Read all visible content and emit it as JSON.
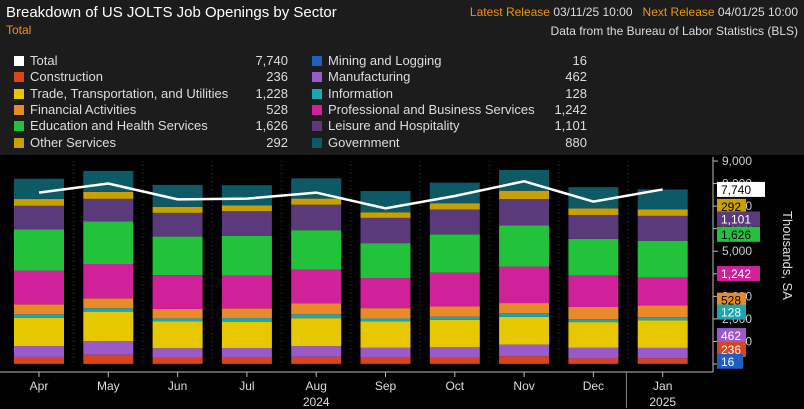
{
  "header": {
    "title": "Breakdown of US JOLTS Job Openings by Sector",
    "subtitle": "Total",
    "latest_release_label": "Latest Release",
    "latest_release_value": "03/11/25 10:00",
    "next_release_label": "Next Release",
    "next_release_value": "04/01/25 10:00",
    "source": "Data from the Bureau of Labor Statistics (BLS)"
  },
  "colors": {
    "Total": "#ffffff",
    "Mining and Logging": "#1f5fbf",
    "Construction": "#d9441c",
    "Manufacturing": "#9b59c9",
    "Trade, Transportation, and Utilities": "#e6c700",
    "Information": "#1aa6b2",
    "Financial Activities": "#e88a2a",
    "Professional and Business Services": "#d0219a",
    "Education and Health Services": "#22c23a",
    "Leisure and Hospitality": "#5a3a7a",
    "Other Services": "#c8a000",
    "Government": "#0d5a66"
  },
  "chart_data": {
    "type": "bar",
    "stacked": true,
    "categories": [
      "Apr",
      "May",
      "Jun",
      "Jul",
      "Aug",
      "Sep",
      "Oct",
      "Nov",
      "Dec",
      "Jan"
    ],
    "year_labels": [
      {
        "text": "2024",
        "at": "Aug"
      },
      {
        "text": "2025",
        "at": "Jan"
      }
    ],
    "ylabel": "Thousands, SA",
    "ylim": [
      0,
      9000
    ],
    "yticks": [
      9000,
      8000,
      7000,
      6000,
      5000,
      4000,
      3000,
      2000,
      1000,
      0
    ],
    "series": [
      {
        "name": "Mining and Logging",
        "values": [
          24,
          22,
          20,
          22,
          23,
          18,
          20,
          22,
          18,
          16
        ]
      },
      {
        "name": "Construction",
        "values": [
          290,
          390,
          250,
          255,
          300,
          260,
          270,
          320,
          230,
          236
        ]
      },
      {
        "name": "Manufacturing",
        "values": [
          480,
          600,
          430,
          430,
          470,
          440,
          450,
          520,
          470,
          462
        ]
      },
      {
        "name": "Trade, Transportation, and Utilities",
        "values": [
          1250,
          1310,
          1200,
          1170,
          1240,
          1180,
          1220,
          1230,
          1140,
          1228
        ]
      },
      {
        "name": "Information",
        "values": [
          160,
          150,
          120,
          160,
          170,
          120,
          140,
          160,
          130,
          128
        ]
      },
      {
        "name": "Financial Activities",
        "values": [
          440,
          440,
          420,
          430,
          480,
          460,
          450,
          450,
          540,
          528
        ]
      },
      {
        "name": "Professional and Business Services",
        "values": [
          1500,
          1520,
          1500,
          1450,
          1500,
          1330,
          1500,
          1620,
          1400,
          1242
        ]
      },
      {
        "name": "Education and Health Services",
        "values": [
          1820,
          1890,
          1710,
          1760,
          1750,
          1550,
          1700,
          1820,
          1620,
          1626
        ]
      },
      {
        "name": "Leisure and Hospitality",
        "values": [
          1050,
          1000,
          1050,
          1100,
          1130,
          1120,
          1100,
          1170,
          1060,
          1101
        ]
      },
      {
        "name": "Other Services",
        "values": [
          300,
          310,
          270,
          260,
          270,
          250,
          280,
          370,
          290,
          292
        ]
      },
      {
        "name": "Government",
        "values": [
          900,
          930,
          970,
          890,
          900,
          940,
          910,
          920,
          940,
          880
        ]
      }
    ],
    "total": {
      "name": "Total",
      "values": [
        7600,
        8000,
        7300,
        7330,
        7600,
        6900,
        7450,
        8100,
        7200,
        7740
      ]
    },
    "legend": [
      {
        "name": "Total",
        "value": "7,740"
      },
      {
        "name": "Construction",
        "value": "236"
      },
      {
        "name": "Trade, Transportation, and Utilities",
        "value": "1,228"
      },
      {
        "name": "Financial Activities",
        "value": "528"
      },
      {
        "name": "Education and Health Services",
        "value": "1,626"
      },
      {
        "name": "Other Services",
        "value": "292"
      },
      {
        "name": "Mining and Logging",
        "value": "16"
      },
      {
        "name": "Manufacturing",
        "value": "462"
      },
      {
        "name": "Information",
        "value": "128"
      },
      {
        "name": "Professional and Business Services",
        "value": "1,242"
      },
      {
        "name": "Leisure and Hospitality",
        "value": "1,101"
      },
      {
        "name": "Government",
        "value": "880"
      }
    ],
    "value_tags": [
      {
        "name": "Total",
        "text": "7,740",
        "y": 7740
      },
      {
        "name": "Other Services",
        "text": "292",
        "y": 6990
      },
      {
        "name": "Leisure and Hospitality",
        "text": "1,101",
        "y": 6430
      },
      {
        "name": "Education and Health Services",
        "text": "1,626",
        "y": 5750
      },
      {
        "name": "Professional and Business Services",
        "text": "1,242",
        "y": 4010
      },
      {
        "name": "Financial Activities",
        "text": "528",
        "y": 2830
      },
      {
        "name": "Information",
        "text": "128",
        "y": 2300
      },
      {
        "name": "Manufacturing",
        "text": "462",
        "y": 1260
      },
      {
        "name": "Construction",
        "text": "236",
        "y": 640
      },
      {
        "name": "Mining and Logging",
        "text": "16",
        "y": 120
      }
    ]
  }
}
